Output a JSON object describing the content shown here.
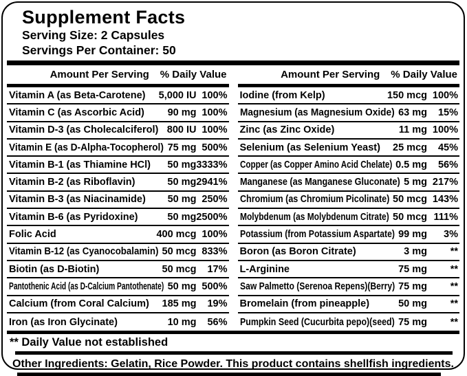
{
  "colors": {
    "ink": "#000000",
    "paper": "#ffffff"
  },
  "header": {
    "title": "Supplement Facts",
    "serving_size": "Serving Size: 2 Capsules",
    "servings_per_container": "Servings Per Container: 50"
  },
  "table": {
    "amount_header": "Amount Per Serving",
    "dv_header": "% Daily Value",
    "left_rows": [
      {
        "name": "Vitamin A (as Beta-Carotene)",
        "amount": "5,000 IU",
        "dv": "100%"
      },
      {
        "name": "Vitamin C (as Ascorbic Acid)",
        "amount": "90 mg",
        "dv": "100%"
      },
      {
        "name": "Vitamin D-3 (as Cholecalciferol)",
        "amount": "800 IU",
        "dv": "100%"
      },
      {
        "name": "Vitamin E (as D-Alpha-Tocopherol)",
        "amount": "75 mg",
        "dv": "500%"
      },
      {
        "name": "Vitamin B-1 (as Thiamine HCl)",
        "amount": "50 mg",
        "dv": "3333%"
      },
      {
        "name": "Vitamin B-2 (as Riboflavin)",
        "amount": "50 mg",
        "dv": "2941%"
      },
      {
        "name": "Vitamin B-3 (as Niacinamide)",
        "amount": "50 mg",
        "dv": "250%"
      },
      {
        "name": "Vitamin B-6 (as Pyridoxine)",
        "amount": "50 mg",
        "dv": "2500%"
      },
      {
        "name": "Folic Acid",
        "amount": "400 mcg",
        "dv": "100%"
      },
      {
        "name": "Vitamin B-12 (as Cyanocobalamin)",
        "amount": "50 mcg",
        "dv": "833%"
      },
      {
        "name": "Biotin (as D-Biotin)",
        "amount": "50 mcg",
        "dv": "17%"
      },
      {
        "name": "Pantothenic Acid (as D-Calcium Pantothenate)",
        "amount": "50 mg",
        "dv": "500%"
      },
      {
        "name": "Calcium (from Coral Calcium)",
        "amount": "185 mg",
        "dv": "19%"
      },
      {
        "name": "Iron (as Iron Glycinate)",
        "amount": "10 mg",
        "dv": "56%"
      }
    ],
    "right_rows": [
      {
        "name": "Iodine (from Kelp)",
        "amount": "150 mcg",
        "dv": "100%"
      },
      {
        "name": "Magnesium (as Magnesium Oxide)",
        "amount": "63 mg",
        "dv": "15%"
      },
      {
        "name": "Zinc (as Zinc Oxide)",
        "amount": "11 mg",
        "dv": "100%"
      },
      {
        "name": "Selenium (as Selenium Yeast)",
        "amount": "25 mcg",
        "dv": "45%"
      },
      {
        "name": "Copper (as Copper Amino Acid Chelate)",
        "amount": "0.5 mg",
        "dv": "56%"
      },
      {
        "name": "Manganese (as Manganese Gluconate)",
        "amount": "5 mg",
        "dv": "217%"
      },
      {
        "name": "Chromium (as Chromium Picolinate)",
        "amount": "50 mcg",
        "dv": "143%"
      },
      {
        "name": "Molybdenum (as Molybdenum Citrate)",
        "amount": "50 mcg",
        "dv": "111%"
      },
      {
        "name": "Potassium (from Potassium Aspartate)",
        "amount": "99 mg",
        "dv": "3%"
      },
      {
        "name": "Boron (as Boron Citrate)",
        "amount": "3 mg",
        "dv": "**"
      },
      {
        "name": "L-Arginine",
        "amount": "75 mg",
        "dv": "**"
      },
      {
        "name": "Saw Palmetto (Serenoa Repens)(Berry)",
        "amount": "75 mg",
        "dv": "**"
      },
      {
        "name": "Bromelain (from pineapple)",
        "amount": "50 mg",
        "dv": "**"
      },
      {
        "name": "Pumpkin Seed (Cucurbita pepo)(seed)",
        "amount": "75 mg",
        "dv": "**"
      }
    ]
  },
  "footer": {
    "footnote": "** Daily Value not established",
    "other_ingredients": "Other Ingredients: Gelatin, Rice Powder. This product contains shellfish ingredients."
  }
}
